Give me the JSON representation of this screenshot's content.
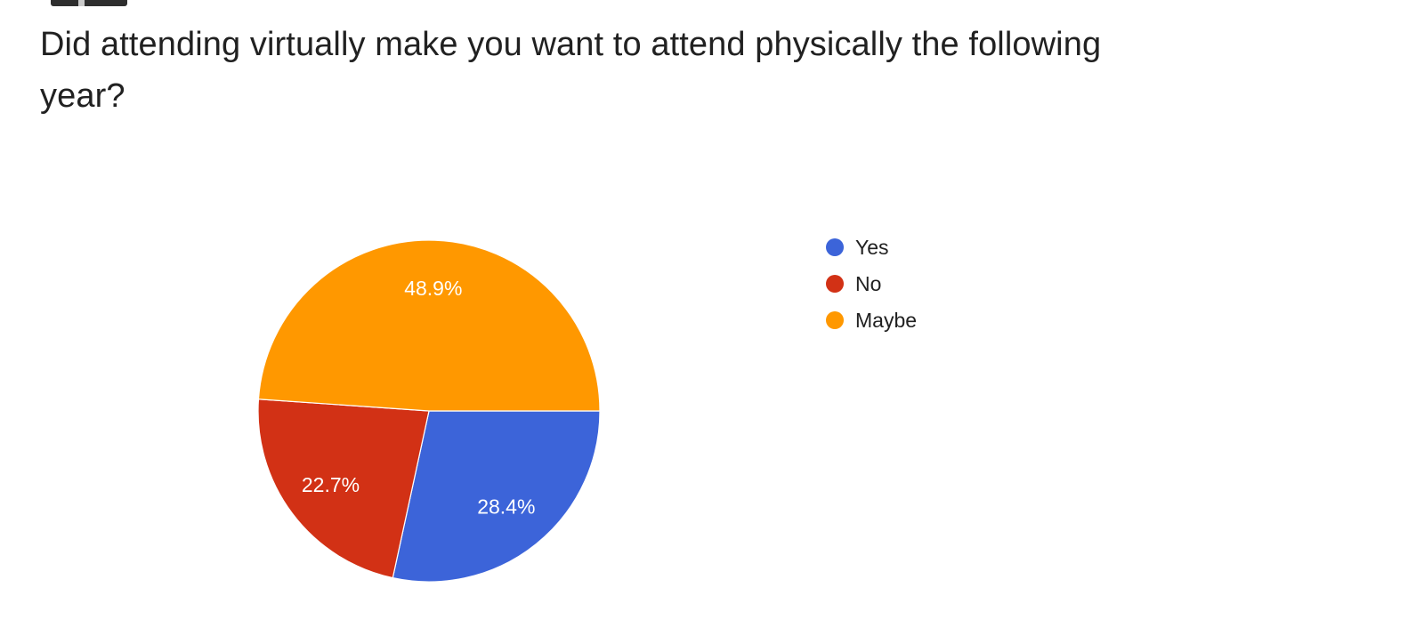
{
  "question": {
    "title": "Did attending virtually make you want to attend physically the following\nyear?"
  },
  "chart_data": {
    "type": "pie",
    "title": "Did attending virtually make you want to attend physically the following year?",
    "categories": [
      "Yes",
      "No",
      "Maybe"
    ],
    "values": [
      28.4,
      22.7,
      48.9
    ],
    "labels": [
      "28.4%",
      "22.7%",
      "48.9%"
    ],
    "colors": [
      "#3c64d9",
      "#d23115",
      "#ff9800"
    ],
    "start_angle_deg": 90,
    "direction": "clockwise",
    "legend_position": "right",
    "slice_label_color": "#ffffff",
    "slice_border_color": "#ffffff",
    "label_radius_factor": 0.72
  },
  "legend": {
    "items": [
      {
        "label": "Yes",
        "color": "#3c64d9"
      },
      {
        "label": "No",
        "color": "#d23115"
      },
      {
        "label": "Maybe",
        "color": "#ff9800"
      }
    ]
  }
}
